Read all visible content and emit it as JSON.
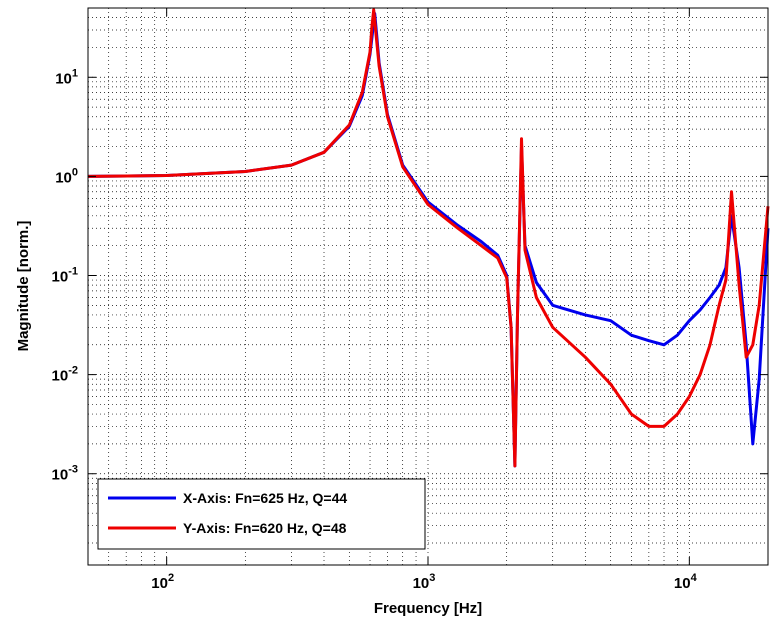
{
  "chart_data": {
    "type": "line",
    "title": "",
    "xlabel": "Frequency [Hz]",
    "ylabel": "Magnitude [norm.]",
    "xscale": "log",
    "yscale": "log",
    "xlim": [
      50,
      20000
    ],
    "ylim": [
      0.00012,
      50
    ],
    "grid": true,
    "legend_placement": "bottom-left",
    "x_ticks": [
      {
        "value": 100,
        "label": "10",
        "exp": "2"
      },
      {
        "value": 1000,
        "label": "10",
        "exp": "3"
      },
      {
        "value": 10000,
        "label": "10",
        "exp": "4"
      }
    ],
    "y_ticks": [
      {
        "value": 0.001,
        "label": "10",
        "exp": "-3"
      },
      {
        "value": 0.01,
        "label": "10",
        "exp": "-2"
      },
      {
        "value": 0.1,
        "label": "10",
        "exp": "-1"
      },
      {
        "value": 1,
        "label": "10",
        "exp": "0"
      },
      {
        "value": 10,
        "label": "10",
        "exp": "1"
      }
    ],
    "series": [
      {
        "name": "X-Axis: Fn=625 Hz, Q=44",
        "color": "#0000ee",
        "x": [
          50,
          100,
          200,
          300,
          400,
          500,
          560,
          600,
          615,
          625,
          635,
          650,
          700,
          800,
          1000,
          1300,
          1600,
          1850,
          2000,
          2080,
          2150,
          2200,
          2280,
          2350,
          2600,
          3000,
          4000,
          5000,
          6000,
          7000,
          8000,
          9000,
          10000,
          11000,
          12000,
          13000,
          13800,
          14500,
          15500,
          16500,
          17500,
          18500,
          20000
        ],
        "y": [
          1.0,
          1.02,
          1.12,
          1.3,
          1.75,
          3.2,
          6.5,
          17,
          30,
          44,
          28,
          14,
          4.2,
          1.3,
          0.55,
          0.32,
          0.22,
          0.16,
          0.1,
          0.03,
          0.0012,
          0.04,
          2.0,
          0.2,
          0.085,
          0.05,
          0.04,
          0.035,
          0.025,
          0.022,
          0.02,
          0.025,
          0.035,
          0.045,
          0.06,
          0.08,
          0.12,
          0.4,
          0.12,
          0.02,
          0.002,
          0.009,
          0.3
        ]
      },
      {
        "name": "Y-Axis: Fn=620 Hz, Q=48",
        "color": "#ee0000",
        "x": [
          50,
          100,
          200,
          300,
          400,
          500,
          560,
          600,
          610,
          620,
          630,
          650,
          700,
          800,
          1000,
          1300,
          1600,
          1850,
          2000,
          2080,
          2150,
          2200,
          2280,
          2350,
          2600,
          3000,
          4000,
          5000,
          6000,
          7000,
          8000,
          9000,
          10000,
          11000,
          12000,
          13000,
          13800,
          14500,
          15500,
          16500,
          17500,
          18500,
          20000
        ],
        "y": [
          1.0,
          1.02,
          1.12,
          1.3,
          1.75,
          3.3,
          7.0,
          18,
          32,
          48,
          30,
          13,
          4.0,
          1.25,
          0.52,
          0.3,
          0.2,
          0.15,
          0.095,
          0.03,
          0.0012,
          0.04,
          2.4,
          0.18,
          0.06,
          0.03,
          0.015,
          0.008,
          0.004,
          0.003,
          0.003,
          0.004,
          0.006,
          0.01,
          0.02,
          0.05,
          0.09,
          0.7,
          0.08,
          0.015,
          0.02,
          0.05,
          0.5
        ]
      }
    ]
  }
}
